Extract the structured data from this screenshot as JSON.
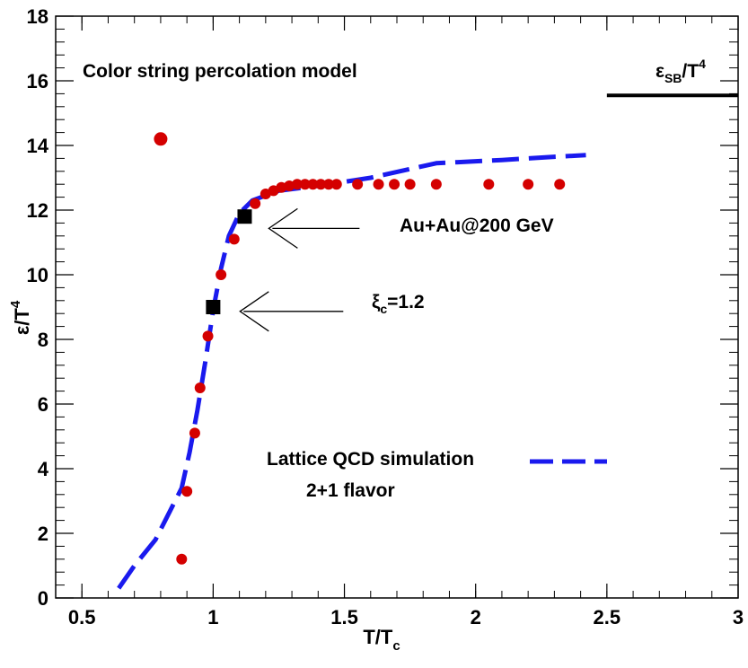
{
  "chart_data": {
    "type": "scatter",
    "title": "",
    "xlabel": "T/T",
    "xlabel_sub": "c",
    "ylabel": "ε/T",
    "ylabel_sup": "4",
    "xlim": [
      0.4,
      3.0
    ],
    "ylim": [
      0,
      18
    ],
    "x_ticks": [
      0.5,
      1,
      1.5,
      2,
      2.5,
      3
    ],
    "x_tick_labels": [
      "0.5",
      "1",
      "1.5",
      "2",
      "2.5",
      "3"
    ],
    "y_ticks": [
      0,
      2,
      4,
      6,
      8,
      10,
      12,
      14,
      16,
      18
    ],
    "y_tick_labels": [
      "0",
      "2",
      "4",
      "6",
      "8",
      "10",
      "12",
      "14",
      "16",
      "18"
    ],
    "grid": false,
    "series": [
      {
        "kind": "scatter",
        "color": "#d40000",
        "x": [
          0.8,
          0.88,
          0.9,
          0.93,
          0.95,
          0.98,
          1.03,
          1.08,
          1.16,
          1.2,
          1.23,
          1.26,
          1.29,
          1.32,
          1.35,
          1.38,
          1.41,
          1.44,
          1.47,
          1.55,
          1.63,
          1.69,
          1.75,
          1.85,
          2.05,
          2.2,
          2.32
        ],
        "values": [
          14.2,
          1.2,
          3.3,
          5.1,
          6.5,
          8.1,
          10.0,
          11.1,
          12.2,
          12.5,
          12.6,
          12.7,
          12.75,
          12.8,
          12.8,
          12.8,
          12.8,
          12.8,
          12.8,
          12.8,
          12.8,
          12.8,
          12.8,
          12.8,
          12.8,
          12.8,
          12.8
        ]
      },
      {
        "name": "Lattice QCD simulation",
        "name_line2": "2+1 flavor",
        "kind": "line",
        "style": "dashed",
        "color": "#1a1aee",
        "x": [
          0.64,
          0.7,
          0.78,
          0.83,
          0.88,
          0.91,
          0.94,
          0.97,
          1.0,
          1.03,
          1.06,
          1.1,
          1.15,
          1.25,
          1.4,
          1.6,
          1.85,
          2.1,
          2.3,
          2.42
        ],
        "values": [
          0.3,
          1.0,
          1.8,
          2.6,
          3.4,
          4.5,
          5.8,
          7.3,
          8.9,
          10.2,
          11.2,
          11.9,
          12.3,
          12.6,
          12.75,
          13.0,
          13.45,
          13.55,
          13.65,
          13.7
        ]
      },
      {
        "kind": "markers",
        "marker": "square",
        "color": "#000000",
        "x": [
          1.0,
          1.12
        ],
        "values": [
          9.0,
          11.8
        ]
      }
    ],
    "reference_line": {
      "label": "ε",
      "label_sub": "SB",
      "label_rest": "/T",
      "label_sup": "4",
      "y": 15.55,
      "x_from": 2.5,
      "x_to": 3.0,
      "color": "#000000"
    },
    "annotations": [
      {
        "text": "Color string percolation model"
      },
      {
        "text": "Au+Au@200 GeV",
        "arrow_to": [
          1.13,
          11.6
        ]
      },
      {
        "text": "ξ",
        "sub": "c",
        "rest": "=1.2",
        "arrow_to": [
          1.01,
          8.95
        ]
      }
    ]
  }
}
